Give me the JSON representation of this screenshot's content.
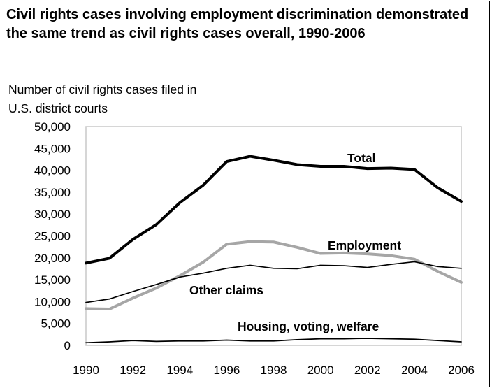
{
  "chart_data": {
    "type": "line",
    "title": "Civil rights cases involving employment discrimination demonstrated the same trend as civil rights cases overall, 1990-2006",
    "ylabel_lines": [
      "Number of civil rights cases filed in",
      "U.S. district courts"
    ],
    "xlabel": "",
    "x": [
      1990,
      1991,
      1992,
      1993,
      1994,
      1995,
      1996,
      1997,
      1998,
      1999,
      2000,
      2001,
      2002,
      2003,
      2004,
      2005,
      2006
    ],
    "x_tick_labels": [
      "1990",
      "1992",
      "1994",
      "1996",
      "1998",
      "2000",
      "2002",
      "2004",
      "2006"
    ],
    "ylim": [
      0,
      50000
    ],
    "y_tick_labels": [
      "0",
      "5,000",
      "10,000",
      "15,000",
      "20,000",
      "25,000",
      "30,000",
      "35,000",
      "40,000",
      "45,000",
      "50,000"
    ],
    "grid": false,
    "legend": "inline labels",
    "series": [
      {
        "name": "Total",
        "color": "#000000",
        "style": "thick",
        "values": [
          18800,
          19900,
          24200,
          27600,
          32600,
          36600,
          42000,
          43200,
          42300,
          41300,
          40900,
          40900,
          40400,
          40500,
          40200,
          36000,
          32900
        ]
      },
      {
        "name": "Employment",
        "color": "#a6a6a6",
        "style": "thick",
        "values": [
          8400,
          8300,
          10800,
          13100,
          15900,
          19000,
          23100,
          23700,
          23600,
          22400,
          21000,
          21100,
          20900,
          20500,
          19700,
          16900,
          14400
        ]
      },
      {
        "name": "Other claims",
        "color": "#000000",
        "style": "thin",
        "values": [
          9800,
          10600,
          12300,
          13900,
          15600,
          16500,
          17600,
          18300,
          17600,
          17500,
          18300,
          18200,
          17800,
          18500,
          19100,
          18000,
          17600
        ]
      },
      {
        "name": "Housing, voting, welfare",
        "color": "#000000",
        "style": "thin",
        "values": [
          600,
          800,
          1100,
          900,
          1000,
          1000,
          1200,
          1000,
          1000,
          1300,
          1500,
          1500,
          1600,
          1500,
          1400,
          1100,
          800
        ]
      }
    ]
  }
}
